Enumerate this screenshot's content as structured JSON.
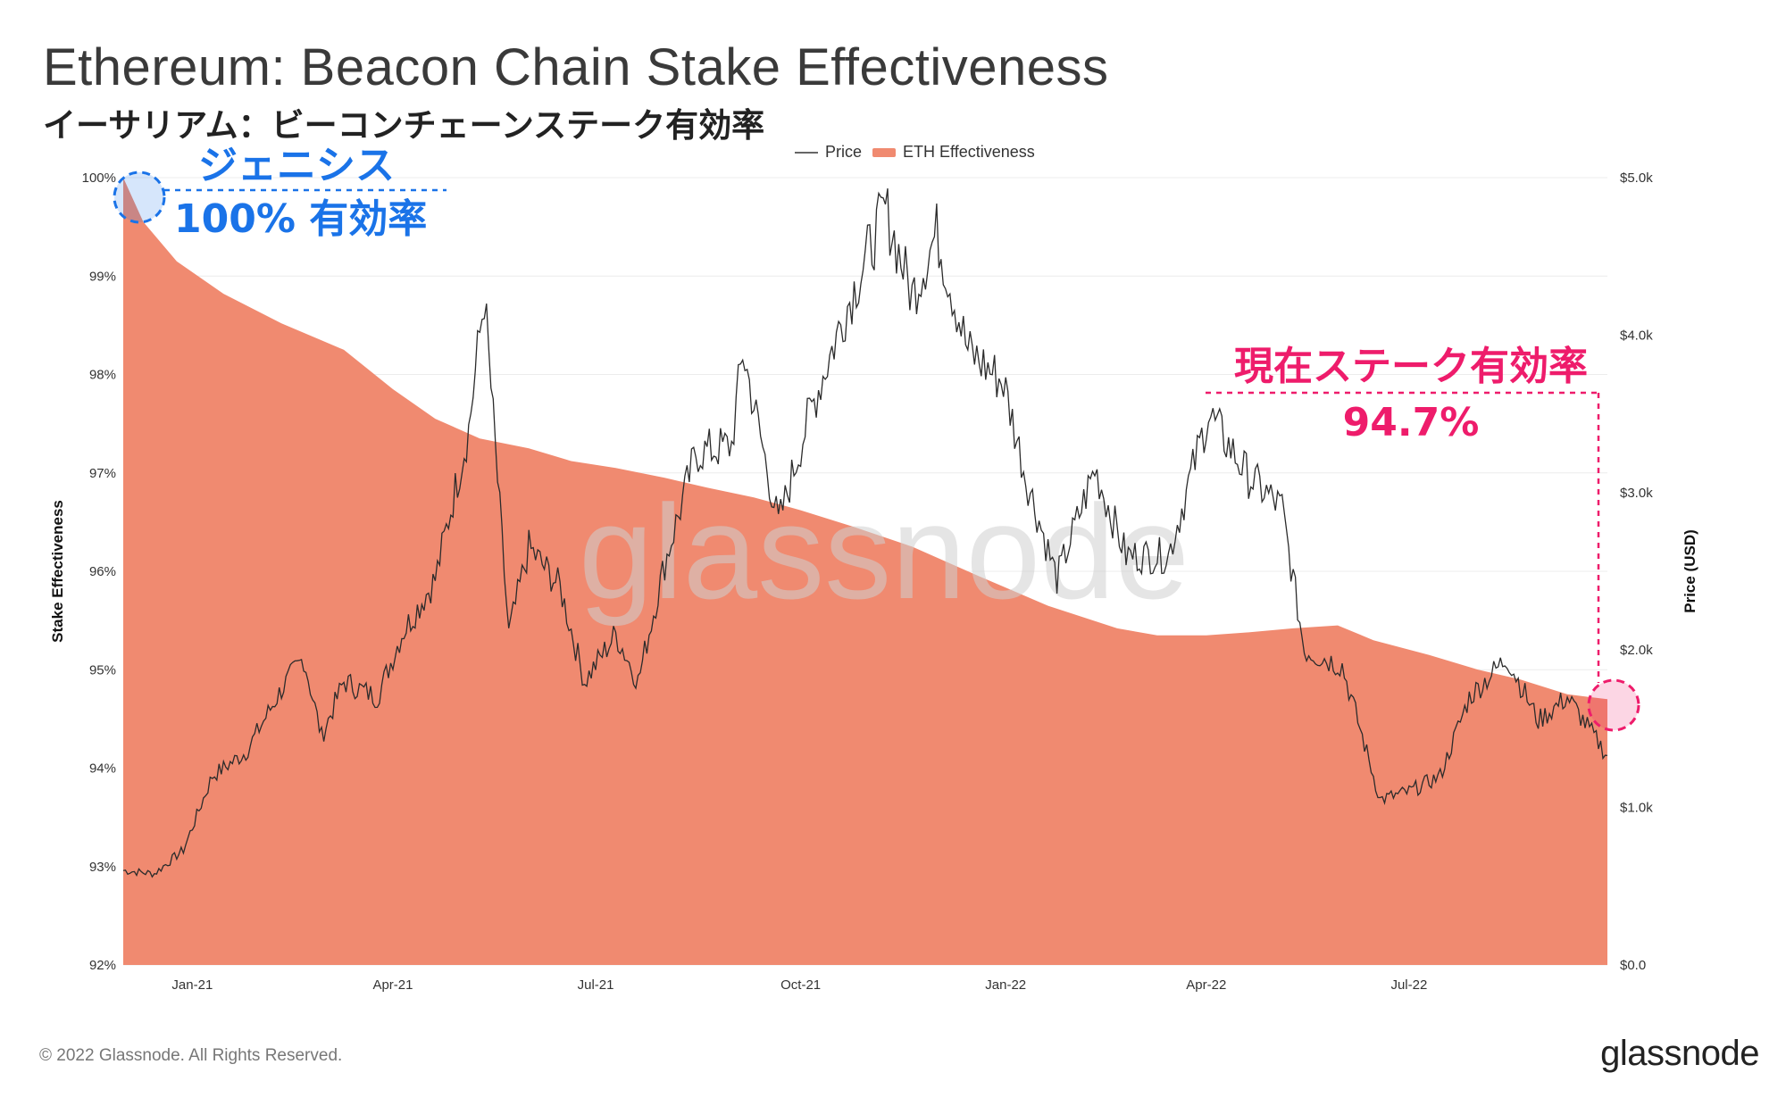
{
  "header": {
    "title": "Ethereum: Beacon Chain Stake Effectiveness",
    "subtitle": "イーサリアム：ビーコンチェーンステーク有効率"
  },
  "footer": {
    "copyright": "© 2022 Glassnode. All Rights Reserved.",
    "logo": "glassnode"
  },
  "colors": {
    "effectiveness_fill": "#f08a70",
    "price_line": "#2b2b2b",
    "annotation_blue": "#1a73e8",
    "annotation_pink": "#ee1c6b",
    "watermark": "#d0d0d0"
  },
  "annotations": {
    "genesis_label": "ジェニシス",
    "genesis_value": "100% 有効率",
    "current_label": "現在ステーク有効率",
    "current_value": "94.7%"
  },
  "chart_data": {
    "type": "area",
    "title": "Ethereum: Beacon Chain Stake Effectiveness",
    "watermark": "glassnode",
    "legend": {
      "placement": "top-center",
      "entries": [
        "Price",
        "ETH Effectiveness"
      ]
    },
    "x_axis": {
      "ticks": [
        "Jan-21",
        "Apr-21",
        "Jul-21",
        "Oct-21",
        "Jan-22",
        "Apr-22",
        "Jul-22"
      ],
      "range": [
        "2020-12-01",
        "2022-09-28"
      ]
    },
    "y_left": {
      "label": "Stake Effectiveness",
      "ticks": [
        "92%",
        "93%",
        "94%",
        "95%",
        "96%",
        "97%",
        "98%",
        "99%",
        "100%"
      ],
      "range": [
        92,
        100
      ]
    },
    "y_right": {
      "label": "Price (USD)",
      "ticks": [
        "$0.0",
        "$1.0k",
        "$2.0k",
        "$3.0k",
        "$4.0k",
        "$5.0k"
      ],
      "range": [
        0,
        5000
      ]
    },
    "grid": true,
    "series": [
      {
        "name": "ETH Effectiveness",
        "axis": "left",
        "points": [
          [
            "2020-12-01",
            100.0
          ],
          [
            "2020-12-10",
            99.55
          ],
          [
            "2020-12-25",
            99.15
          ],
          [
            "2021-01-15",
            98.82
          ],
          [
            "2021-02-10",
            98.52
          ],
          [
            "2021-03-10",
            98.25
          ],
          [
            "2021-04-01",
            97.85
          ],
          [
            "2021-04-20",
            97.55
          ],
          [
            "2021-05-10",
            97.35
          ],
          [
            "2021-06-01",
            97.25
          ],
          [
            "2021-06-20",
            97.12
          ],
          [
            "2021-07-10",
            97.05
          ],
          [
            "2021-08-01",
            96.95
          ],
          [
            "2021-08-20",
            96.85
          ],
          [
            "2021-09-10",
            96.75
          ],
          [
            "2021-10-01",
            96.62
          ],
          [
            "2021-10-25",
            96.45
          ],
          [
            "2021-11-20",
            96.25
          ],
          [
            "2021-12-20",
            95.95
          ],
          [
            "2022-01-20",
            95.65
          ],
          [
            "2022-02-20",
            95.42
          ],
          [
            "2022-03-10",
            95.35
          ],
          [
            "2022-04-01",
            95.35
          ],
          [
            "2022-04-20",
            95.38
          ],
          [
            "2022-05-10",
            95.42
          ],
          [
            "2022-05-30",
            95.45
          ],
          [
            "2022-06-15",
            95.3
          ],
          [
            "2022-07-10",
            95.15
          ],
          [
            "2022-08-01",
            95.0
          ],
          [
            "2022-08-20",
            94.9
          ],
          [
            "2022-09-10",
            94.75
          ],
          [
            "2022-09-28",
            94.7
          ]
        ]
      },
      {
        "name": "Price",
        "axis": "right",
        "points": [
          [
            "2020-12-01",
            600
          ],
          [
            "2020-12-15",
            580
          ],
          [
            "2020-12-28",
            730
          ],
          [
            "2021-01-10",
            1200
          ],
          [
            "2021-01-25",
            1350
          ],
          [
            "2021-02-10",
            1750
          ],
          [
            "2021-02-20",
            1950
          ],
          [
            "2021-02-28",
            1450
          ],
          [
            "2021-03-10",
            1800
          ],
          [
            "2021-03-25",
            1700
          ],
          [
            "2021-04-05",
            2100
          ],
          [
            "2021-04-20",
            2450
          ],
          [
            "2021-05-05",
            3400
          ],
          [
            "2021-05-12",
            4250
          ],
          [
            "2021-05-23",
            2100
          ],
          [
            "2021-06-01",
            2650
          ],
          [
            "2021-06-15",
            2400
          ],
          [
            "2021-06-26",
            1800
          ],
          [
            "2021-07-10",
            2100
          ],
          [
            "2021-07-20",
            1800
          ],
          [
            "2021-08-01",
            2550
          ],
          [
            "2021-08-15",
            3250
          ],
          [
            "2021-08-31",
            3300
          ],
          [
            "2021-09-05",
            3900
          ],
          [
            "2021-09-21",
            2800
          ],
          [
            "2021-10-05",
            3500
          ],
          [
            "2021-10-21",
            4150
          ],
          [
            "2021-11-08",
            4800
          ],
          [
            "2021-11-20",
            4250
          ],
          [
            "2021-12-01",
            4650
          ],
          [
            "2021-12-15",
            3900
          ],
          [
            "2021-12-31",
            3700
          ],
          [
            "2022-01-10",
            3100
          ],
          [
            "2022-01-24",
            2450
          ],
          [
            "2022-02-10",
            3150
          ],
          [
            "2022-02-24",
            2600
          ],
          [
            "2022-03-15",
            2600
          ],
          [
            "2022-04-02",
            3500
          ],
          [
            "2022-04-20",
            3100
          ],
          [
            "2022-05-05",
            2900
          ],
          [
            "2022-05-15",
            2000
          ],
          [
            "2022-06-01",
            1900
          ],
          [
            "2022-06-18",
            1050
          ],
          [
            "2022-07-01",
            1100
          ],
          [
            "2022-07-15",
            1200
          ],
          [
            "2022-07-28",
            1700
          ],
          [
            "2022-08-14",
            1950
          ],
          [
            "2022-08-28",
            1550
          ],
          [
            "2022-09-10",
            1700
          ],
          [
            "2022-09-28",
            1330
          ]
        ]
      }
    ]
  }
}
